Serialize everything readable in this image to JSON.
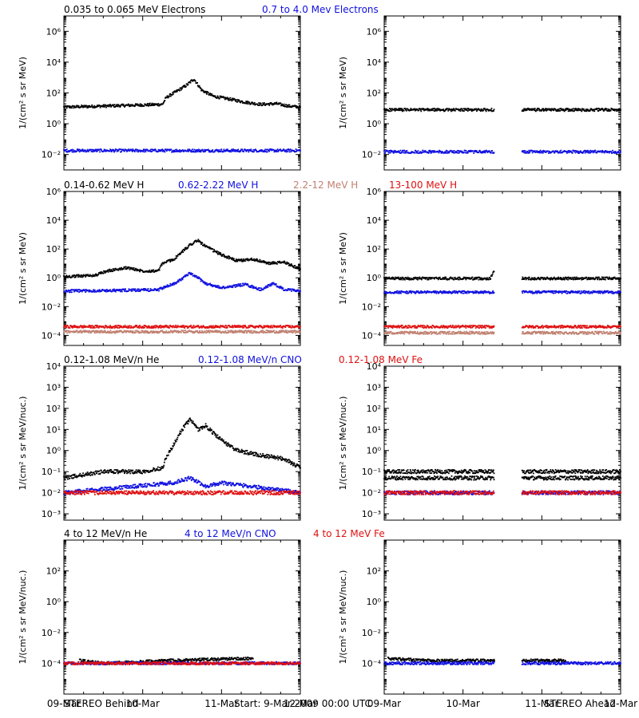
{
  "colors": {
    "black": "#000000",
    "blue": "#1010e0",
    "salmon": "#c08070",
    "red": "#e01010"
  },
  "footer": {
    "left": "STEREO Behind",
    "center": "Start:  9-Mar-2009 00:00 UTC",
    "right": "STEREO Ahead"
  },
  "chart_data": [
    {
      "type": "scatter",
      "row": 0,
      "side": "STEREO Behind",
      "ylabel": "1/(cm² s sr MeV)",
      "yscale": "log",
      "ylim": [
        0.001,
        10000000
      ],
      "yticks": [
        {
          "v": 0.01,
          "label": "10⁻²"
        },
        {
          "v": 1,
          "label": "10⁰"
        },
        {
          "v": 100,
          "label": "10²"
        },
        {
          "v": 10000,
          "label": "10⁴"
        },
        {
          "v": 1000000,
          "label": "10⁶"
        }
      ],
      "xlim": [
        0,
        3
      ],
      "xticks": [
        "09-Mar",
        "10-Mar",
        "11-Mar",
        "12-Mar"
      ],
      "legend": [
        {
          "label": "0.035 to 0.065 MeV Electrons",
          "color": "black"
        },
        {
          "label": "0.7 to 4.0 Mev Electrons",
          "color": "blue"
        }
      ],
      "series": [
        {
          "name": "0.035 to 0.065 MeV Electrons",
          "color": "black",
          "points": [
            [
              0,
              12
            ],
            [
              0.5,
              14
            ],
            [
              0.9,
              16
            ],
            [
              1.25,
              18
            ],
            [
              1.3,
              50
            ],
            [
              1.55,
              300
            ],
            [
              1.65,
              800
            ],
            [
              1.75,
              150
            ],
            [
              1.9,
              60
            ],
            [
              2.1,
              40
            ],
            [
              2.3,
              25
            ],
            [
              2.5,
              18
            ],
            [
              2.7,
              20
            ],
            [
              2.85,
              14
            ],
            [
              3,
              12
            ]
          ]
        },
        {
          "name": "0.7 to 4.0 Mev Electrons",
          "color": "blue",
          "points": [
            [
              0,
              0.018
            ],
            [
              1,
              0.018
            ],
            [
              2,
              0.018
            ],
            [
              3,
              0.018
            ]
          ]
        }
      ]
    },
    {
      "type": "scatter",
      "row": 0,
      "side": "STEREO Ahead",
      "ylabel": "1/(cm² s sr MeV)",
      "yscale": "log",
      "ylim": [
        0.001,
        10000000
      ],
      "yticks": [
        {
          "v": 0.01,
          "label": "10⁻²"
        },
        {
          "v": 1,
          "label": "10⁰"
        },
        {
          "v": 100,
          "label": "10²"
        },
        {
          "v": 10000,
          "label": "10⁴"
        },
        {
          "v": 1000000,
          "label": "10⁶"
        }
      ],
      "xlim": [
        0,
        3
      ],
      "xticks": [
        "09-Mar",
        "10-Mar",
        "11-Mar",
        "12-Mar"
      ],
      "legend": [],
      "gap": [
        1.4,
        1.75
      ],
      "series": [
        {
          "color": "black",
          "points": [
            [
              0,
              8
            ],
            [
              1.4,
              8
            ],
            [
              1.75,
              8
            ],
            [
              3,
              8
            ]
          ]
        },
        {
          "color": "blue",
          "points": [
            [
              0,
              0.015
            ],
            [
              1.4,
              0.015
            ],
            [
              1.75,
              0.015
            ],
            [
              3,
              0.015
            ]
          ]
        }
      ]
    },
    {
      "type": "scatter",
      "row": 1,
      "side": "STEREO Behind",
      "ylabel": "1/(cm² s sr MeV)",
      "yscale": "log",
      "ylim": [
        2e-05,
        1000000
      ],
      "yticks": [
        {
          "v": 0.0001,
          "label": "10⁻⁴"
        },
        {
          "v": 0.01,
          "label": "10⁻²"
        },
        {
          "v": 1,
          "label": "10⁰"
        },
        {
          "v": 100,
          "label": "10²"
        },
        {
          "v": 10000,
          "label": "10⁴"
        },
        {
          "v": 1000000,
          "label": "10⁶"
        }
      ],
      "xlim": [
        0,
        3
      ],
      "xticks": [
        "09-Mar",
        "10-Mar",
        "11-Mar",
        "12-Mar"
      ],
      "legend": [
        {
          "label": "0.14-0.62 MeV H",
          "color": "black"
        },
        {
          "label": "0.62-2.22 MeV H",
          "color": "blue"
        },
        {
          "label": "2.2-12 MeV H",
          "color": "salmon"
        },
        {
          "label": "13-100 MeV H",
          "color": "red"
        }
      ],
      "series": [
        {
          "name": "0.14-0.62 MeV H",
          "color": "black",
          "points": [
            [
              0,
              1.2
            ],
            [
              0.4,
              1.5
            ],
            [
              0.55,
              3
            ],
            [
              0.7,
              4
            ],
            [
              0.8,
              5
            ],
            [
              1.0,
              3
            ],
            [
              1.2,
              3
            ],
            [
              1.25,
              10
            ],
            [
              1.4,
              20
            ],
            [
              1.6,
              200
            ],
            [
              1.7,
              400
            ],
            [
              1.8,
              150
            ],
            [
              2.0,
              40
            ],
            [
              2.2,
              15
            ],
            [
              2.4,
              20
            ],
            [
              2.6,
              10
            ],
            [
              2.8,
              12
            ],
            [
              3,
              4
            ]
          ]
        },
        {
          "name": "0.62-2.22 MeV H",
          "color": "blue",
          "points": [
            [
              0,
              0.12
            ],
            [
              1.0,
              0.14
            ],
            [
              1.2,
              0.15
            ],
            [
              1.4,
              0.4
            ],
            [
              1.6,
              2
            ],
            [
              1.7,
              1
            ],
            [
              1.8,
              0.4
            ],
            [
              2.0,
              0.2
            ],
            [
              2.3,
              0.35
            ],
            [
              2.5,
              0.15
            ],
            [
              2.65,
              0.4
            ],
            [
              2.8,
              0.15
            ],
            [
              3,
              0.12
            ]
          ]
        },
        {
          "name": "2.2-12 MeV H",
          "color": "salmon",
          "points": [
            [
              0,
              0.00018
            ],
            [
              1.5,
              0.00018
            ],
            [
              3,
              0.00018
            ]
          ]
        },
        {
          "name": "13-100 MeV H",
          "color": "red",
          "points": [
            [
              0,
              0.0004
            ],
            [
              1.5,
              0.0004
            ],
            [
              3,
              0.0004
            ]
          ]
        }
      ]
    },
    {
      "type": "scatter",
      "row": 1,
      "side": "STEREO Ahead",
      "ylabel": "1/(cm² s sr MeV)",
      "yscale": "log",
      "ylim": [
        2e-05,
        1000000
      ],
      "yticks": [
        {
          "v": 0.0001,
          "label": "10⁻⁴"
        },
        {
          "v": 0.01,
          "label": "10⁻²"
        },
        {
          "v": 1,
          "label": "10⁰"
        },
        {
          "v": 100,
          "label": "10²"
        },
        {
          "v": 10000,
          "label": "10⁴"
        },
        {
          "v": 1000000,
          "label": "10⁶"
        }
      ],
      "xlim": [
        0,
        3
      ],
      "xticks": [
        "09-Mar",
        "10-Mar",
        "11-Mar",
        "12-Mar"
      ],
      "legend": [],
      "gap": [
        1.4,
        1.75
      ],
      "series": [
        {
          "color": "black",
          "points": [
            [
              0,
              0.9
            ],
            [
              1.35,
              0.9
            ],
            [
              1.4,
              4
            ],
            [
              1.75,
              0.9
            ],
            [
              3,
              0.9
            ]
          ]
        },
        {
          "color": "blue",
          "points": [
            [
              0,
              0.1
            ],
            [
              1.4,
              0.1
            ],
            [
              1.75,
              0.1
            ],
            [
              3,
              0.1
            ]
          ]
        },
        {
          "color": "salmon",
          "points": [
            [
              0,
              0.00015
            ],
            [
              1.4,
              0.00015
            ],
            [
              1.75,
              0.00015
            ],
            [
              3,
              0.00015
            ]
          ]
        },
        {
          "color": "red",
          "points": [
            [
              0,
              0.0004
            ],
            [
              1.4,
              0.0004
            ],
            [
              1.75,
              0.0004
            ],
            [
              3,
              0.0004
            ]
          ]
        }
      ]
    },
    {
      "type": "scatter",
      "row": 2,
      "side": "STEREO Behind",
      "ylabel": "1/(cm² s sr MeV/nuc.)",
      "yscale": "log",
      "ylim": [
        0.0005,
        10000
      ],
      "yticks": [
        {
          "v": 0.001,
          "label": "10⁻³"
        },
        {
          "v": 0.01,
          "label": "10⁻²"
        },
        {
          "v": 0.1,
          "label": "10⁻¹"
        },
        {
          "v": 1,
          "label": "10⁰"
        },
        {
          "v": 10,
          "label": "10¹"
        },
        {
          "v": 100,
          "label": "10²"
        },
        {
          "v": 1000,
          "label": "10³"
        },
        {
          "v": 10000,
          "label": "10⁴"
        }
      ],
      "xlim": [
        0,
        3
      ],
      "xticks": [
        "09-Mar",
        "10-Mar",
        "11-Mar",
        "12-Mar"
      ],
      "legend": [
        {
          "label": "0.12-1.08 MeV/n He",
          "color": "black"
        },
        {
          "label": "0.12-1.08 MeV/n CNO",
          "color": "blue"
        },
        {
          "label": "0.12-1.08 MeV Fe",
          "color": "red"
        }
      ],
      "series": [
        {
          "name": "0.12-1.08 MeV/n He",
          "color": "black",
          "points": [
            [
              0,
              0.05
            ],
            [
              0.5,
              0.1
            ],
            [
              1.0,
              0.1
            ],
            [
              1.25,
              0.15
            ],
            [
              1.3,
              0.5
            ],
            [
              1.4,
              2
            ],
            [
              1.5,
              10
            ],
            [
              1.6,
              30
            ],
            [
              1.7,
              10
            ],
            [
              1.8,
              15
            ],
            [
              2.0,
              3
            ],
            [
              2.2,
              1
            ],
            [
              2.5,
              0.6
            ],
            [
              2.8,
              0.4
            ],
            [
              3,
              0.15
            ]
          ]
        },
        {
          "name": "0.12-1.08 MeV/n CNO",
          "color": "blue",
          "points": [
            [
              0,
              0.01
            ],
            [
              1.4,
              0.03
            ],
            [
              1.6,
              0.05
            ],
            [
              1.8,
              0.02
            ],
            [
              2.0,
              0.03
            ],
            [
              3,
              0.01
            ]
          ]
        },
        {
          "name": "0.12-1.08 MeV Fe",
          "color": "red",
          "points": [
            [
              0,
              0.01
            ],
            [
              1.5,
              0.01
            ],
            [
              3,
              0.01
            ]
          ]
        }
      ]
    },
    {
      "type": "scatter",
      "row": 2,
      "side": "STEREO Ahead",
      "ylabel": "1/(cm² s sr MeV/nuc.)",
      "yscale": "log",
      "ylim": [
        0.0005,
        10000
      ],
      "yticks": [
        {
          "v": 0.001,
          "label": "10⁻³"
        },
        {
          "v": 0.01,
          "label": "10⁻²"
        },
        {
          "v": 0.1,
          "label": "10⁻¹"
        },
        {
          "v": 1,
          "label": "10⁰"
        },
        {
          "v": 10,
          "label": "10¹"
        },
        {
          "v": 100,
          "label": "10²"
        },
        {
          "v": 1000,
          "label": "10³"
        },
        {
          "v": 10000,
          "label": "10⁴"
        }
      ],
      "xlim": [
        0,
        3
      ],
      "xticks": [
        "09-Mar",
        "10-Mar",
        "11-Mar",
        "12-Mar"
      ],
      "legend": [],
      "gap": [
        1.4,
        1.75
      ],
      "series": [
        {
          "color": "black",
          "points": [
            [
              0,
              0.1
            ],
            [
              1.4,
              0.1
            ],
            [
              1.75,
              0.1
            ],
            [
              3,
              0.1
            ]
          ]
        },
        {
          "color": "black",
          "points": [
            [
              0,
              0.05
            ],
            [
              1.4,
              0.05
            ],
            [
              1.75,
              0.05
            ],
            [
              3,
              0.05
            ]
          ]
        },
        {
          "color": "blue",
          "points": [
            [
              0,
              0.01
            ],
            [
              1.4,
              0.01
            ],
            [
              1.75,
              0.01
            ],
            [
              3,
              0.01
            ]
          ]
        },
        {
          "color": "red",
          "points": [
            [
              0,
              0.01
            ],
            [
              1.4,
              0.01
            ],
            [
              1.75,
              0.01
            ],
            [
              3,
              0.01
            ]
          ]
        }
      ]
    },
    {
      "type": "scatter",
      "row": 3,
      "side": "STEREO Behind",
      "ylabel": "1/(cm² s sr MeV/nuc.)",
      "yscale": "log",
      "ylim": [
        1e-06,
        10000
      ],
      "yticks": [
        {
          "v": 0.0001,
          "label": "10⁻⁴"
        },
        {
          "v": 0.01,
          "label": "10⁻²"
        },
        {
          "v": 1,
          "label": "10⁰"
        },
        {
          "v": 100,
          "label": "10²"
        }
      ],
      "xlim": [
        0,
        3
      ],
      "xticks": [
        "09-Mar",
        "10-Mar",
        "11-Mar",
        "12-Mar"
      ],
      "legend": [
        {
          "label": "4 to 12 MeV/n He",
          "color": "black"
        },
        {
          "label": "4 to 12 MeV/n CNO",
          "color": "blue"
        },
        {
          "label": "4 to 12 MeV Fe",
          "color": "red"
        }
      ],
      "series": [
        {
          "name": "4 to 12 MeV/n He",
          "color": "black",
          "points": [
            [
              0.2,
              0.00015
            ],
            [
              0.5,
              0.0001
            ],
            [
              1.3,
              0.00015
            ],
            [
              2.2,
              0.0002
            ],
            [
              2.4,
              0.0002
            ]
          ]
        },
        {
          "name": "4 to 12 MeV/n CNO",
          "color": "blue",
          "points": [
            [
              0,
              0.0001
            ],
            [
              1.5,
              0.0001
            ],
            [
              3,
              0.0001
            ]
          ]
        },
        {
          "name": "4 to 12 MeV Fe",
          "color": "red",
          "points": [
            [
              0,
              0.0001
            ],
            [
              3,
              0.0001
            ]
          ]
        }
      ]
    },
    {
      "type": "scatter",
      "row": 3,
      "side": "STEREO Ahead",
      "ylabel": "1/(cm² s sr MeV/nuc.)",
      "yscale": "log",
      "ylim": [
        1e-06,
        10000
      ],
      "yticks": [
        {
          "v": 0.0001,
          "label": "10⁻⁴"
        },
        {
          "v": 0.01,
          "label": "10⁻²"
        },
        {
          "v": 1,
          "label": "10⁰"
        },
        {
          "v": 100,
          "label": "10²"
        }
      ],
      "xlim": [
        0,
        3
      ],
      "xticks": [
        "09-Mar",
        "10-Mar",
        "11-Mar",
        "12-Mar"
      ],
      "legend": [],
      "gap": [
        1.4,
        1.75
      ],
      "series": [
        {
          "color": "black",
          "points": [
            [
              0.05,
              0.0002
            ],
            [
              0.6,
              0.00015
            ],
            [
              2.3,
              0.00015
            ]
          ]
        },
        {
          "color": "blue",
          "points": [
            [
              0,
              0.0001
            ],
            [
              1.4,
              0.0001
            ],
            [
              1.75,
              0.0001
            ],
            [
              3,
              0.0001
            ]
          ]
        }
      ]
    }
  ]
}
